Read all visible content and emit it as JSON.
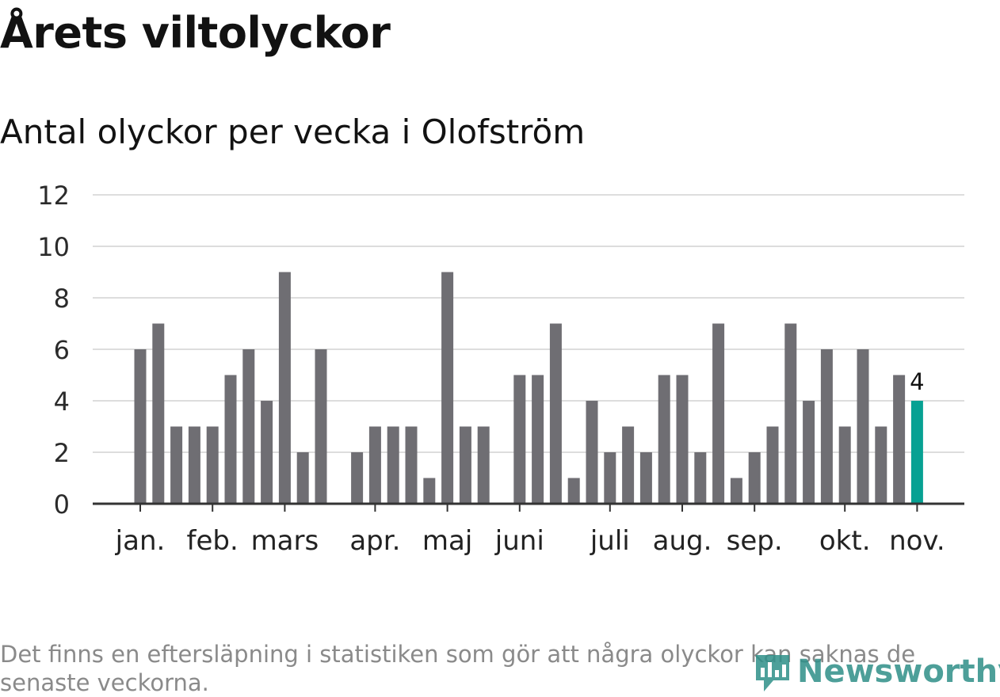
{
  "header": {
    "title": "Årets viltolyckor",
    "subtitle": "Antal olyckor per vecka i Olofström"
  },
  "footer": {
    "note": "Det finns en eftersläpning i statistiken som gör att några olyckor kan saknas de senaste veckorna.",
    "brand": "Newsworthy"
  },
  "colors": {
    "bar": "#6f6e73",
    "highlight": "#07a193",
    "grid": "#dddddd",
    "axis": "#333333"
  },
  "chart_data": {
    "type": "bar",
    "title": "Antal olyckor per vecka i Olofström",
    "xlabel": "",
    "ylabel": "",
    "ylim": [
      0,
      12
    ],
    "yticks": [
      0,
      2,
      4,
      6,
      8,
      10,
      12
    ],
    "grid": true,
    "week_start": 1,
    "week_end": 44,
    "values": [
      6,
      7,
      3,
      3,
      3,
      5,
      6,
      4,
      9,
      2,
      6,
      null,
      2,
      3,
      3,
      3,
      1,
      9,
      3,
      3,
      null,
      5,
      5,
      7,
      1,
      4,
      2,
      3,
      2,
      5,
      5,
      2,
      7,
      1,
      2,
      3,
      7,
      4,
      6,
      3,
      6,
      3,
      5,
      4
    ],
    "highlight_index": 43,
    "data_labels": [
      {
        "index": 43,
        "text": "4"
      }
    ],
    "month_labels": [
      {
        "label": "jan.",
        "week": 1
      },
      {
        "label": "feb.",
        "week": 5
      },
      {
        "label": "mars",
        "week": 9
      },
      {
        "label": "apr.",
        "week": 14
      },
      {
        "label": "maj",
        "week": 18
      },
      {
        "label": "juni",
        "week": 22
      },
      {
        "label": "juli",
        "week": 27
      },
      {
        "label": "aug.",
        "week": 31
      },
      {
        "label": "sep.",
        "week": 35
      },
      {
        "label": "okt.",
        "week": 40
      },
      {
        "label": "nov.",
        "week": 44
      }
    ]
  }
}
